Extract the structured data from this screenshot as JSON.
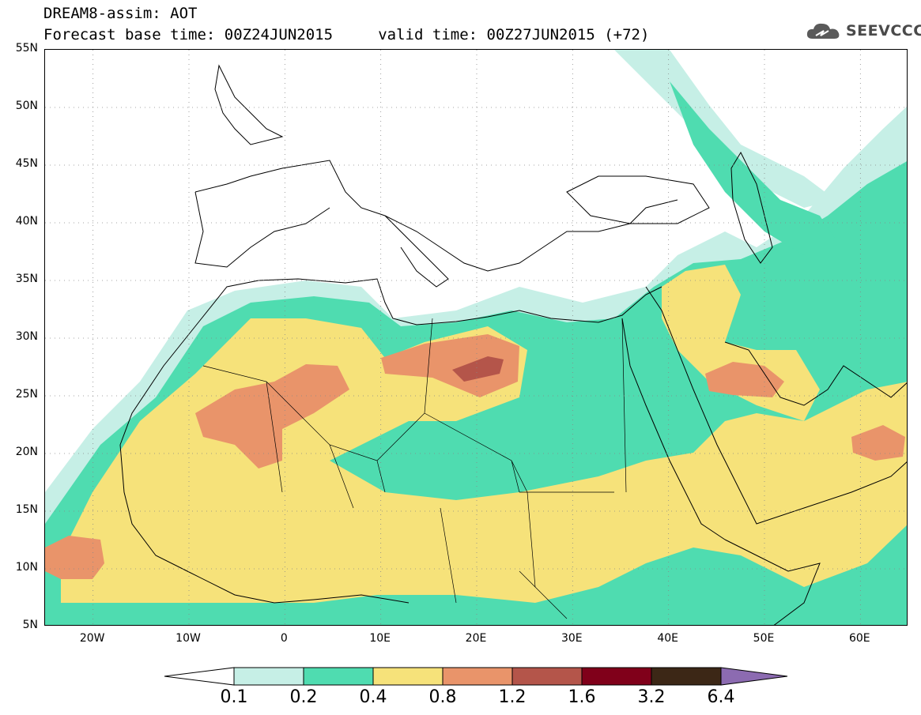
{
  "title_line1": "DREAM8-assim: AOT",
  "title_line2": "Forecast base time: 00Z24JUN2015     valid time: 00Z27JUN2015 (+72)",
  "logo_text": "SEEVCCC",
  "logo_icon": "cloud-icon",
  "map": {
    "lat_labels": [
      "55N",
      "50N",
      "45N",
      "40N",
      "35N",
      "30N",
      "25N",
      "20N",
      "15N",
      "10N",
      "5N"
    ],
    "lon_labels": [
      "20W",
      "10W",
      "0",
      "10E",
      "20E",
      "30E",
      "40E",
      "50E",
      "60E"
    ],
    "lat_range": [
      5,
      55
    ],
    "lon_range": [
      -25,
      65
    ],
    "grid": "dotted"
  },
  "colorbar": {
    "labels": [
      "0.1",
      "0.2",
      "0.4",
      "0.8",
      "1.2",
      "1.6",
      "3.2",
      "6.4"
    ],
    "colors": [
      "#ffffff",
      "#c6efe6",
      "#4fdcb0",
      "#f6e27a",
      "#e9946a",
      "#b4554a",
      "#80001a",
      "#3c2716",
      "#8c6bb1"
    ]
  }
}
